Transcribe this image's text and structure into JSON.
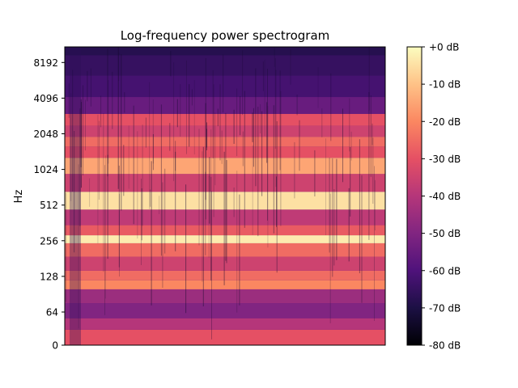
{
  "chart_data": {
    "type": "heatmap",
    "title": "Log-frequency power spectrogram",
    "xlabel": "",
    "ylabel": "Hz",
    "y_scale": "log2 with linear region near 0",
    "y_ticks": [
      {
        "value": 0,
        "label": "0"
      },
      {
        "value": 64,
        "label": "64"
      },
      {
        "value": 128,
        "label": "128"
      },
      {
        "value": 256,
        "label": "256"
      },
      {
        "value": 512,
        "label": "512"
      },
      {
        "value": 1024,
        "label": "1024"
      },
      {
        "value": 2048,
        "label": "2048"
      },
      {
        "value": 4096,
        "label": "4096"
      },
      {
        "value": 8192,
        "label": "8192"
      }
    ],
    "colorbar": {
      "colormap": "magma",
      "range_db": [
        -80,
        0
      ],
      "ticks": [
        {
          "value": 0,
          "label": "+0 dB"
        },
        {
          "value": -10,
          "label": "-10 dB"
        },
        {
          "value": -20,
          "label": "-20 dB"
        },
        {
          "value": -30,
          "label": "-30 dB"
        },
        {
          "value": -40,
          "label": "-40 dB"
        },
        {
          "value": -50,
          "label": "-50 dB"
        },
        {
          "value": -60,
          "label": "-60 dB"
        },
        {
          "value": -70,
          "label": "-70 dB"
        },
        {
          "value": -80,
          "label": "-80 dB"
        }
      ]
    },
    "frequency_bands_db": [
      {
        "hz": 20,
        "db": -30
      },
      {
        "hz": 40,
        "db": -40
      },
      {
        "hz": 64,
        "db": -50
      },
      {
        "hz": 90,
        "db": -45
      },
      {
        "hz": 110,
        "db": -20
      },
      {
        "hz": 128,
        "db": -25
      },
      {
        "hz": 160,
        "db": -35
      },
      {
        "hz": 220,
        "db": -25
      },
      {
        "hz": 270,
        "db": -3
      },
      {
        "hz": 300,
        "db": -28
      },
      {
        "hz": 400,
        "db": -38
      },
      {
        "hz": 550,
        "db": -5
      },
      {
        "hz": 800,
        "db": -35
      },
      {
        "hz": 1100,
        "db": -15
      },
      {
        "hz": 1500,
        "db": -30
      },
      {
        "hz": 1700,
        "db": -25
      },
      {
        "hz": 2200,
        "db": -35
      },
      {
        "hz": 2600,
        "db": -30
      },
      {
        "hz": 3500,
        "db": -55
      },
      {
        "hz": 5000,
        "db": -62
      },
      {
        "hz": 8000,
        "db": -65
      },
      {
        "hz": 11000,
        "db": -68
      }
    ]
  }
}
